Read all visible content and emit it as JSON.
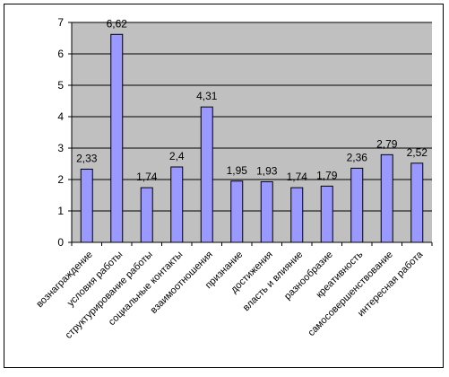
{
  "chart_data": {
    "type": "bar",
    "title": "",
    "xlabel": "",
    "ylabel": "",
    "categories": [
      "вознаграждение",
      "условия работы",
      "структурирование работы",
      "социальные контакты",
      "взаимоотношения",
      "признание",
      "достижения",
      "власть и влияние",
      "разнообразие",
      "креативность",
      "самосовершенствование",
      "интересная работа"
    ],
    "values": [
      2.33,
      6.62,
      1.74,
      2.4,
      4.31,
      1.95,
      1.93,
      1.74,
      1.79,
      2.36,
      2.79,
      2.52
    ],
    "value_labels": [
      "2,33",
      "6,62",
      "1,74",
      "2,4",
      "4,31",
      "1,95",
      "1,93",
      "1,74",
      "1,79",
      "2,36",
      "2,79",
      "2,52"
    ],
    "ylim": [
      0,
      7
    ],
    "yticks": [
      "0",
      "1",
      "2",
      "3",
      "4",
      "5",
      "6",
      "7"
    ],
    "grid": true,
    "legend": "none",
    "colors": {
      "plot_background": "#c0c0c0",
      "bar_fill": "#9999ff",
      "bar_stroke": "#000000",
      "gridline": "#000000",
      "outer_border": "#000000"
    }
  }
}
